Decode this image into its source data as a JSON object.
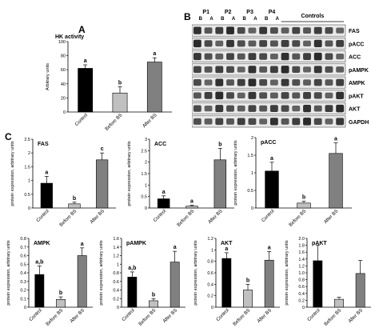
{
  "panels": {
    "a": "A",
    "b": "B",
    "c": "C"
  },
  "western_blot": {
    "group_labels": [
      "P1",
      "P2",
      "P3",
      "P4"
    ],
    "lane_labels": [
      "B",
      "A",
      "B",
      "A",
      "B",
      "A",
      "B",
      "A"
    ],
    "controls_label": "Controls",
    "bands": [
      "FAS",
      "pACC",
      "ACC",
      "pAMPK",
      "AMPK",
      "pAKT",
      "AKT",
      "GAPDH"
    ],
    "band_color": "#1a1a1a",
    "background_color": "#e9e9e9"
  },
  "colors": {
    "control": "#000000",
    "before": "#c0c0c0",
    "after": "#808080"
  },
  "chart_data": [
    {
      "id": "hk",
      "type": "bar",
      "title": "HK activity",
      "categories": [
        "Control",
        "Before BS",
        "After BS"
      ],
      "values": [
        62,
        27,
        71
      ],
      "errors": [
        5,
        9,
        6
      ],
      "sig_labels": [
        "a",
        "b",
        "a"
      ],
      "ylabel": "Arbitrary units",
      "ylim": [
        0,
        100
      ],
      "yticks": [
        0,
        20,
        40,
        60,
        80,
        100
      ]
    },
    {
      "id": "fas",
      "type": "bar",
      "title": "FAS",
      "categories": [
        "Control",
        "Before BS",
        "After BS"
      ],
      "values": [
        0.9,
        0.15,
        1.75
      ],
      "errors": [
        0.25,
        0.06,
        0.25
      ],
      "sig_labels": [
        "a",
        "b",
        "c"
      ],
      "ylabel": "protein expression, arbitrary units",
      "ylim": [
        0,
        2.5
      ],
      "yticks": [
        0,
        0.5,
        1,
        1.5,
        2,
        2.5
      ],
      "ytick_labels": [
        "0",
        "0.5",
        "1",
        "1.5",
        "2",
        "2.5"
      ]
    },
    {
      "id": "acc",
      "type": "bar",
      "title": "ACC",
      "categories": [
        "Control",
        "Before BS",
        "After BS"
      ],
      "values": [
        0.4,
        0.08,
        2.1
      ],
      "errors": [
        0.13,
        0.04,
        0.5
      ],
      "sig_labels": [
        "a",
        "a",
        "b"
      ],
      "ylabel": "protein expression, arbitrary units",
      "ylim": [
        0,
        3
      ],
      "yticks": [
        0,
        0.5,
        1,
        1.5,
        2,
        2.5,
        3
      ],
      "ytick_labels": [
        "0",
        "0.5",
        "1",
        "1.5",
        "2",
        "2.5",
        "3"
      ]
    },
    {
      "id": "pacc",
      "type": "bar",
      "title": "pACC",
      "categories": [
        "Control",
        "Before BS",
        "After BS"
      ],
      "values": [
        1.05,
        0.14,
        1.55
      ],
      "errors": [
        0.25,
        0.05,
        0.3
      ],
      "sig_labels": [
        "a",
        "b",
        "a"
      ],
      "ylabel": "protein expression, arbitrary units",
      "ylim": [
        0,
        2
      ],
      "yticks": [
        0,
        0.5,
        1,
        1.5,
        2
      ],
      "ytick_labels": [
        "0",
        "0.5",
        "1",
        "1.5",
        "2"
      ]
    },
    {
      "id": "ampk",
      "type": "bar",
      "title": "AMPK",
      "categories": [
        "Control",
        "Before BS",
        "After BS"
      ],
      "values": [
        0.38,
        0.09,
        0.6
      ],
      "errors": [
        0.1,
        0.03,
        0.09
      ],
      "sig_labels": [
        "a,b",
        "b",
        "a"
      ],
      "ylabel": "protein expression, arbitrary units",
      "ylim": [
        0,
        0.8
      ],
      "yticks": [
        0,
        0.1,
        0.2,
        0.3,
        0.4,
        0.5,
        0.6,
        0.7,
        0.8
      ],
      "ytick_labels": [
        "0",
        "0.1",
        "0.2",
        "0.3",
        "0.4",
        "0.5",
        "0.6",
        "0.7",
        "0.8"
      ]
    },
    {
      "id": "pampk",
      "type": "bar",
      "title": "pAMPK",
      "categories": [
        "Control",
        "Before BS",
        "After BS"
      ],
      "values": [
        0.7,
        0.15,
        1.05
      ],
      "errors": [
        0.12,
        0.05,
        0.25
      ],
      "sig_labels": [
        "a,b",
        "b",
        "a"
      ],
      "ylabel": "protein expression, arbitrary units",
      "ylim": [
        0,
        1.6
      ],
      "yticks": [
        0,
        0.2,
        0.4,
        0.6,
        0.8,
        1,
        1.2,
        1.4,
        1.6
      ],
      "ytick_labels": [
        "0",
        "0.2",
        "0.4",
        "0.6",
        "0.8",
        "1",
        "1.2",
        "1.4",
        "1.6"
      ]
    },
    {
      "id": "akt",
      "type": "bar",
      "title": "AKT",
      "categories": [
        "Control",
        "Before BS",
        "After BS"
      ],
      "values": [
        0.85,
        0.3,
        0.82
      ],
      "errors": [
        0.1,
        0.1,
        0.15
      ],
      "sig_labels": [
        "a",
        "b",
        "a"
      ],
      "ylabel": "protein expression, arbitrary units",
      "ylim": [
        0,
        1.2
      ],
      "yticks": [
        0,
        0.2,
        0.4,
        0.6,
        0.8,
        1,
        1.2
      ],
      "ytick_labels": [
        "0",
        "0.2",
        "0.4",
        "0.6",
        "0.8",
        "1",
        "1.2"
      ]
    },
    {
      "id": "pakt",
      "type": "bar",
      "title": "pAKT",
      "categories": [
        "Control",
        "Before BS",
        "After BS"
      ],
      "values": [
        1.35,
        0.23,
        0.98
      ],
      "errors": [
        0.45,
        0.06,
        0.38
      ],
      "sig_labels": [
        "",
        "",
        ""
      ],
      "ylabel": "protein expression, arbitrary units",
      "ylim": [
        0,
        2
      ],
      "yticks": [
        0,
        0.2,
        0.4,
        0.6,
        0.8,
        1,
        1.2,
        1.4,
        1.6,
        1.8,
        2
      ],
      "ytick_labels": [
        "0",
        "0.2",
        "0.4",
        "0.6",
        "0.8",
        "1.0",
        "1.2",
        "1.4",
        "1.6",
        "1.8",
        "2.0"
      ]
    }
  ]
}
